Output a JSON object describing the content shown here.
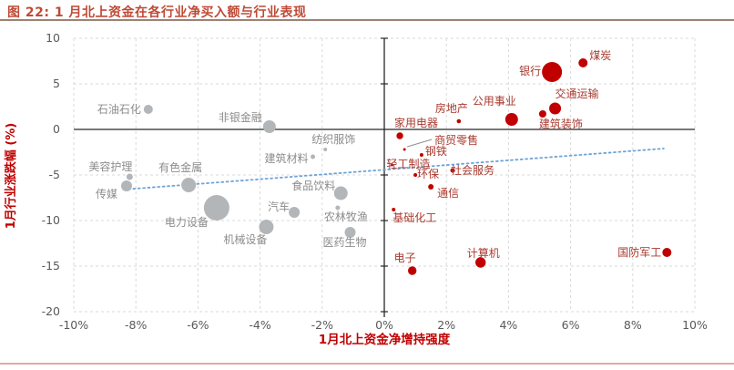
{
  "header": {
    "title": "图 22: 1 月北上资金在各行业净买入额与行业表现"
  },
  "chart_data": {
    "type": "scatter",
    "title": "图 22: 1 月北上资金在各行业净买入额与行业表现",
    "xlabel": "1月北上资金净增持强度",
    "ylabel": "1月行业涨跌幅 (%)",
    "xlim": [
      -10,
      10
    ],
    "ylim": [
      -20,
      10
    ],
    "x_ticks": [
      -10,
      -8,
      -6,
      -4,
      -2,
      0,
      2,
      4,
      6,
      8,
      10
    ],
    "x_tick_labels": [
      "-10%",
      "-8%",
      "-6%",
      "-4%",
      "-2%",
      "0%",
      "2%",
      "4%",
      "6%",
      "8%",
      "10%"
    ],
    "y_ticks": [
      10,
      5,
      0,
      -5,
      -10,
      -15,
      -20
    ],
    "y_tick_labels": [
      "10",
      "5",
      "0",
      "-5",
      "-10",
      "-15",
      "-20"
    ],
    "grid": true,
    "legend": "none",
    "colors": {
      "title": "#bf4a36",
      "axis_title": "#c00000",
      "tick_text": "#595959",
      "gridline": "#d9d9d9",
      "zero_axis": "#262626",
      "trend": "#6fa3d8",
      "callout_line": "#8f8f8f",
      "gray_bubble": "#b2b6b8",
      "gray_label": "#8c8c8c",
      "red_bubble": "#c00000",
      "red_label": "#a8392e"
    },
    "trendline": {
      "x1": -8.4,
      "y1": -6.6,
      "x2": 9.0,
      "y2": -2.1,
      "style": "dotted"
    },
    "series": [
      {
        "key": "gray",
        "bubble_color": "#b2b6b8",
        "label_color": "#8c8c8c",
        "points": [
          {
            "label": "石油石化",
            "x": -7.6,
            "y": 2.2,
            "r": 5,
            "dx": -32,
            "dy": 0
          },
          {
            "label": "非银金融",
            "x": -3.7,
            "y": 0.3,
            "r": 7,
            "dx": -32,
            "dy": -10
          },
          {
            "label": "纺织服饰",
            "x": -1.9,
            "y": -2.2,
            "r": 2,
            "dx": 9,
            "dy": -11
          },
          {
            "label": "建筑材料",
            "x": -2.3,
            "y": -3.0,
            "r": 2.5,
            "dx": -29,
            "dy": 2
          },
          {
            "label": "美容护理",
            "x": -8.2,
            "y": -5.2,
            "r": 3.5,
            "dx": -21,
            "dy": -11
          },
          {
            "label": "有色金属",
            "x": -6.3,
            "y": -6.1,
            "r": 8,
            "dx": -9,
            "dy": -19
          },
          {
            "label": "传媒",
            "x": -8.3,
            "y": -6.2,
            "r": 6,
            "dx": -22,
            "dy": 9
          },
          {
            "label": "电力设备",
            "x": -5.4,
            "y": -8.6,
            "r": 14,
            "dx": -33,
            "dy": 16
          },
          {
            "label": "机械设备",
            "x": -3.8,
            "y": -10.7,
            "r": 8,
            "dx": -23,
            "dy": 14
          },
          {
            "label": "汽车",
            "x": -2.9,
            "y": -9.1,
            "r": 6,
            "dx": -17,
            "dy": -6
          },
          {
            "label": "食品饮料",
            "x": -1.4,
            "y": -7.0,
            "r": 7.5,
            "dx": -30,
            "dy": -8
          },
          {
            "label": "农林牧渔",
            "x": -1.5,
            "y": -8.6,
            "r": 2.5,
            "dx": 9,
            "dy": 10
          },
          {
            "label": "医药生物",
            "x": -1.1,
            "y": -11.3,
            "r": 6,
            "dx": -6,
            "dy": 11
          }
        ]
      },
      {
        "key": "red",
        "bubble_color": "#c00000",
        "label_color": "#a8392e",
        "points": [
          {
            "label": "家用电器",
            "x": 0.5,
            "y": -0.7,
            "r": 3.7,
            "dx": 18,
            "dy": -14
          },
          {
            "label": "房地产",
            "x": 2.4,
            "y": 0.9,
            "r": 2.3,
            "dx": -8,
            "dy": -14
          },
          {
            "label": "公用事业",
            "x": 4.1,
            "y": 1.1,
            "r": 7,
            "dx": -19,
            "dy": -20
          },
          {
            "label": "建筑装饰",
            "x": 5.1,
            "y": 1.7,
            "r": 4,
            "dx": 20,
            "dy": 11
          },
          {
            "label": "交通运输",
            "x": 5.5,
            "y": 2.3,
            "r": 6.5,
            "dx": 24,
            "dy": -16
          },
          {
            "label": "银行",
            "x": 5.4,
            "y": 6.3,
            "r": 11,
            "dx": -24,
            "dy": -1
          },
          {
            "label": "煤炭",
            "x": 6.4,
            "y": 7.3,
            "r": 5,
            "dx": 19,
            "dy": -8
          },
          {
            "label": "商贸零售",
            "x": 0.65,
            "y": -2.2,
            "r": 1.5,
            "dx": 57,
            "dy": -10,
            "callout": true
          },
          {
            "label": "钢铁",
            "x": 1.2,
            "y": -2.8,
            "r": 2,
            "dx": 16,
            "dy": -4
          },
          {
            "label": "轻工制造",
            "x": 0.25,
            "y": -3.9,
            "r": 1.5,
            "dx": 18,
            "dy": -1
          },
          {
            "label": "环保",
            "x": 1.0,
            "y": -5.0,
            "r": 2,
            "dx": 14,
            "dy": -1
          },
          {
            "label": "社会服务",
            "x": 2.2,
            "y": -4.5,
            "r": 2.5,
            "dx": 22,
            "dy": 0
          },
          {
            "label": "通信",
            "x": 1.5,
            "y": -6.3,
            "r": 3,
            "dx": 19,
            "dy": 7
          },
          {
            "label": "基础化工",
            "x": 0.3,
            "y": -8.8,
            "r": 2,
            "dx": 23,
            "dy": 9
          },
          {
            "label": "电子",
            "x": 0.9,
            "y": -15.5,
            "r": 4.7,
            "dx": -8,
            "dy": -14
          },
          {
            "label": "计算机",
            "x": 3.1,
            "y": -14.6,
            "r": 5.7,
            "dx": 3,
            "dy": -10
          },
          {
            "label": "国防军工",
            "x": 9.1,
            "y": -13.5,
            "r": 5,
            "dx": -30,
            "dy": 0
          }
        ]
      }
    ]
  }
}
